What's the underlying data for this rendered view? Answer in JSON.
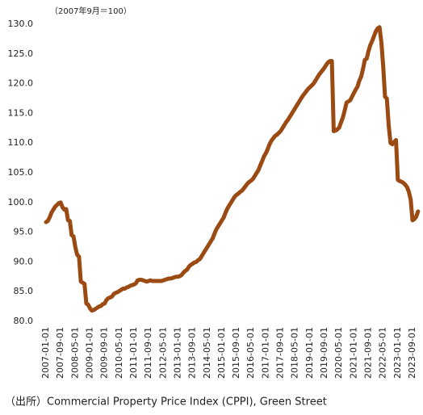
{
  "chart_data": {
    "type": "line",
    "annotation": "（2007年9月＝100）",
    "source": "（出所）Commercial Property Price Index (CPPI), Green Street",
    "categories": [
      "2007-01-01",
      null,
      null,
      null,
      null,
      null,
      null,
      null,
      "2007-09-01",
      null,
      null,
      null,
      null,
      null,
      null,
      null,
      "2008-05-01",
      null,
      null,
      null,
      null,
      null,
      null,
      null,
      "2009-01-01",
      null,
      null,
      null,
      null,
      null,
      null,
      null,
      "2009-09-01",
      null,
      null,
      null,
      null,
      null,
      null,
      null,
      "2010-05-01",
      null,
      null,
      null,
      null,
      null,
      null,
      null,
      "2011-01-01",
      null,
      null,
      null,
      null,
      null,
      null,
      null,
      "2011-09-01",
      null,
      null,
      null,
      null,
      null,
      null,
      null,
      "2012-05-01",
      null,
      null,
      null,
      null,
      null,
      null,
      null,
      "2013-01-01",
      null,
      null,
      null,
      null,
      null,
      null,
      null,
      "2013-09-01",
      null,
      null,
      null,
      null,
      null,
      null,
      null,
      "2014-05-01",
      null,
      null,
      null,
      null,
      null,
      null,
      null,
      "2015-01-01",
      null,
      null,
      null,
      null,
      null,
      null,
      null,
      "2015-09-01",
      null,
      null,
      null,
      null,
      null,
      null,
      null,
      "2016-05-01",
      null,
      null,
      null,
      null,
      null,
      null,
      null,
      "2017-01-01",
      null,
      null,
      null,
      null,
      null,
      null,
      null,
      "2017-09-01",
      null,
      null,
      null,
      null,
      null,
      null,
      null,
      "2018-05-01",
      null,
      null,
      null,
      null,
      null,
      null,
      null,
      "2019-01-01",
      null,
      null,
      null,
      null,
      null,
      null,
      null,
      "2019-09-01",
      null,
      null,
      null,
      null,
      null,
      null,
      null,
      "2020-05-01",
      null,
      null,
      null,
      null,
      null,
      null,
      null,
      "2021-01-01",
      null,
      null,
      null,
      null,
      null,
      null,
      null,
      "2021-09-01",
      null,
      null,
      null,
      null,
      null,
      null,
      null,
      "2022-05-01",
      null,
      null,
      null,
      null,
      null,
      null,
      null,
      "2023-01-01",
      null,
      null,
      null,
      null,
      null,
      null,
      null,
      "2023-09-01",
      null,
      null,
      null
    ],
    "values": [
      96.7,
      96.9,
      97.5,
      98.3,
      98.8,
      99.3,
      99.6,
      99.9,
      100.0,
      99.2,
      98.8,
      98.9,
      97.0,
      96.9,
      94.5,
      94.3,
      92.5,
      91.2,
      90.9,
      86.7,
      86.5,
      86.3,
      83.0,
      82.8,
      82.2,
      81.8,
      81.9,
      82.1,
      82.3,
      82.5,
      82.6,
      82.9,
      83.0,
      83.6,
      83.9,
      84.0,
      84.2,
      84.6,
      84.8,
      84.9,
      85.1,
      85.3,
      85.5,
      85.5,
      85.7,
      85.8,
      86.0,
      86.1,
      86.2,
      86.4,
      86.9,
      87.0,
      87.0,
      86.9,
      86.8,
      86.7,
      86.8,
      86.9,
      86.8,
      86.8,
      86.8,
      86.8,
      86.8,
      86.8,
      86.9,
      87.0,
      87.1,
      87.2,
      87.2,
      87.3,
      87.4,
      87.5,
      87.5,
      87.6,
      87.8,
      88.2,
      88.5,
      88.7,
      89.2,
      89.5,
      89.7,
      89.9,
      90.0,
      90.3,
      90.5,
      91.0,
      91.5,
      92.0,
      92.5,
      93.0,
      93.5,
      94.0,
      94.8,
      95.5,
      96.0,
      96.5,
      97.0,
      97.5,
      98.3,
      99.0,
      99.5,
      100.0,
      100.5,
      101.0,
      101.3,
      101.5,
      101.8,
      102.0,
      102.4,
      102.8,
      103.2,
      103.5,
      103.7,
      104.0,
      104.5,
      105.0,
      105.5,
      106.3,
      107.0,
      107.8,
      108.3,
      109.0,
      109.8,
      110.4,
      110.8,
      111.2,
      111.4,
      111.7,
      112.0,
      112.5,
      113.0,
      113.5,
      113.9,
      114.4,
      114.9,
      115.4,
      115.9,
      116.4,
      116.9,
      117.4,
      117.9,
      118.3,
      118.7,
      119.1,
      119.4,
      119.7,
      120.0,
      120.5,
      121.0,
      121.5,
      121.9,
      122.3,
      122.7,
      123.2,
      123.6,
      123.8,
      123.8,
      112.0,
      112.1,
      112.3,
      112.6,
      113.5,
      114.3,
      115.5,
      116.8,
      117.0,
      117.2,
      117.8,
      118.4,
      119.0,
      119.5,
      120.5,
      121.2,
      122.5,
      124.0,
      124.2,
      125.5,
      126.5,
      127.2,
      128.0,
      128.8,
      129.3,
      129.5,
      127.0,
      123.0,
      117.8,
      117.5,
      113.0,
      110.0,
      109.8,
      110.2,
      110.5,
      103.8,
      103.6,
      103.5,
      103.3,
      103.0,
      102.6,
      101.8,
      100.5,
      97.0,
      97.2,
      97.6,
      98.5
    ],
    "color": "#9a4a12",
    "ylim": [
      80,
      130
    ],
    "yticks": [
      {
        "value": 80,
        "label": "80.0"
      },
      {
        "value": 85,
        "label": "85.0"
      },
      {
        "value": 90,
        "label": "90.0"
      },
      {
        "value": 95,
        "label": "95.0"
      },
      {
        "value": 100,
        "label": "100.0"
      },
      {
        "value": 105,
        "label": "105.0"
      },
      {
        "value": 110,
        "label": "110.0"
      },
      {
        "value": 115,
        "label": "115.0"
      },
      {
        "value": 120,
        "label": "120.0"
      },
      {
        "value": 125,
        "label": "125.0"
      },
      {
        "value": 130,
        "label": "130.0"
      }
    ],
    "grid": false
  }
}
